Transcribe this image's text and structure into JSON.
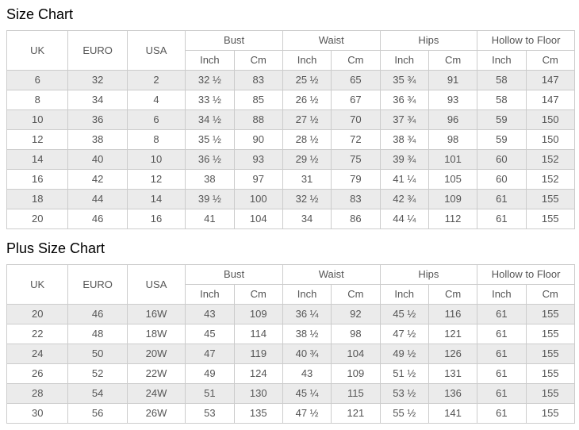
{
  "sections": [
    {
      "title": "Size Chart",
      "header": {
        "uk": "UK",
        "euro": "EURO",
        "usa": "USA",
        "groups": [
          "Bust",
          "Waist",
          "Hips",
          "Hollow to Floor"
        ],
        "units": [
          "Inch",
          "Cm"
        ]
      },
      "rows": [
        [
          "6",
          "32",
          "2",
          "32 ½",
          "83",
          "25 ½",
          "65",
          "35 ¾",
          "91",
          "58",
          "147"
        ],
        [
          "8",
          "34",
          "4",
          "33 ½",
          "85",
          "26 ½",
          "67",
          "36 ¾",
          "93",
          "58",
          "147"
        ],
        [
          "10",
          "36",
          "6",
          "34 ½",
          "88",
          "27 ½",
          "70",
          "37 ¾",
          "96",
          "59",
          "150"
        ],
        [
          "12",
          "38",
          "8",
          "35 ½",
          "90",
          "28 ½",
          "72",
          "38 ¾",
          "98",
          "59",
          "150"
        ],
        [
          "14",
          "40",
          "10",
          "36 ½",
          "93",
          "29 ½",
          "75",
          "39 ¾",
          "101",
          "60",
          "152"
        ],
        [
          "16",
          "42",
          "12",
          "38",
          "97",
          "31",
          "79",
          "41 ¼",
          "105",
          "60",
          "152"
        ],
        [
          "18",
          "44",
          "14",
          "39 ½",
          "100",
          "32 ½",
          "83",
          "42 ¾",
          "109",
          "61",
          "155"
        ],
        [
          "20",
          "46",
          "16",
          "41",
          "104",
          "34",
          "86",
          "44 ¼",
          "112",
          "61",
          "155"
        ]
      ]
    },
    {
      "title": "Plus Size Chart",
      "header": {
        "uk": "UK",
        "euro": "EURO",
        "usa": "USA",
        "groups": [
          "Bust",
          "Waist",
          "Hips",
          "Hollow to Floor"
        ],
        "units": [
          "Inch",
          "Cm"
        ]
      },
      "rows": [
        [
          "20",
          "46",
          "16W",
          "43",
          "109",
          "36 ¼",
          "92",
          "45 ½",
          "116",
          "61",
          "155"
        ],
        [
          "22",
          "48",
          "18W",
          "45",
          "114",
          "38 ½",
          "98",
          "47 ½",
          "121",
          "61",
          "155"
        ],
        [
          "24",
          "50",
          "20W",
          "47",
          "119",
          "40 ¾",
          "104",
          "49 ½",
          "126",
          "61",
          "155"
        ],
        [
          "26",
          "52",
          "22W",
          "49",
          "124",
          "43",
          "109",
          "51 ½",
          "131",
          "61",
          "155"
        ],
        [
          "28",
          "54",
          "24W",
          "51",
          "130",
          "45 ¼",
          "115",
          "53 ½",
          "136",
          "61",
          "155"
        ],
        [
          "30",
          "56",
          "26W",
          "53",
          "135",
          "47 ½",
          "121",
          "55 ½",
          "141",
          "61",
          "155"
        ]
      ]
    }
  ],
  "colors": {
    "row_stripe": "#ebebeb",
    "border": "#cccccc",
    "cell_text": "#555555",
    "title_text": "#000000"
  }
}
